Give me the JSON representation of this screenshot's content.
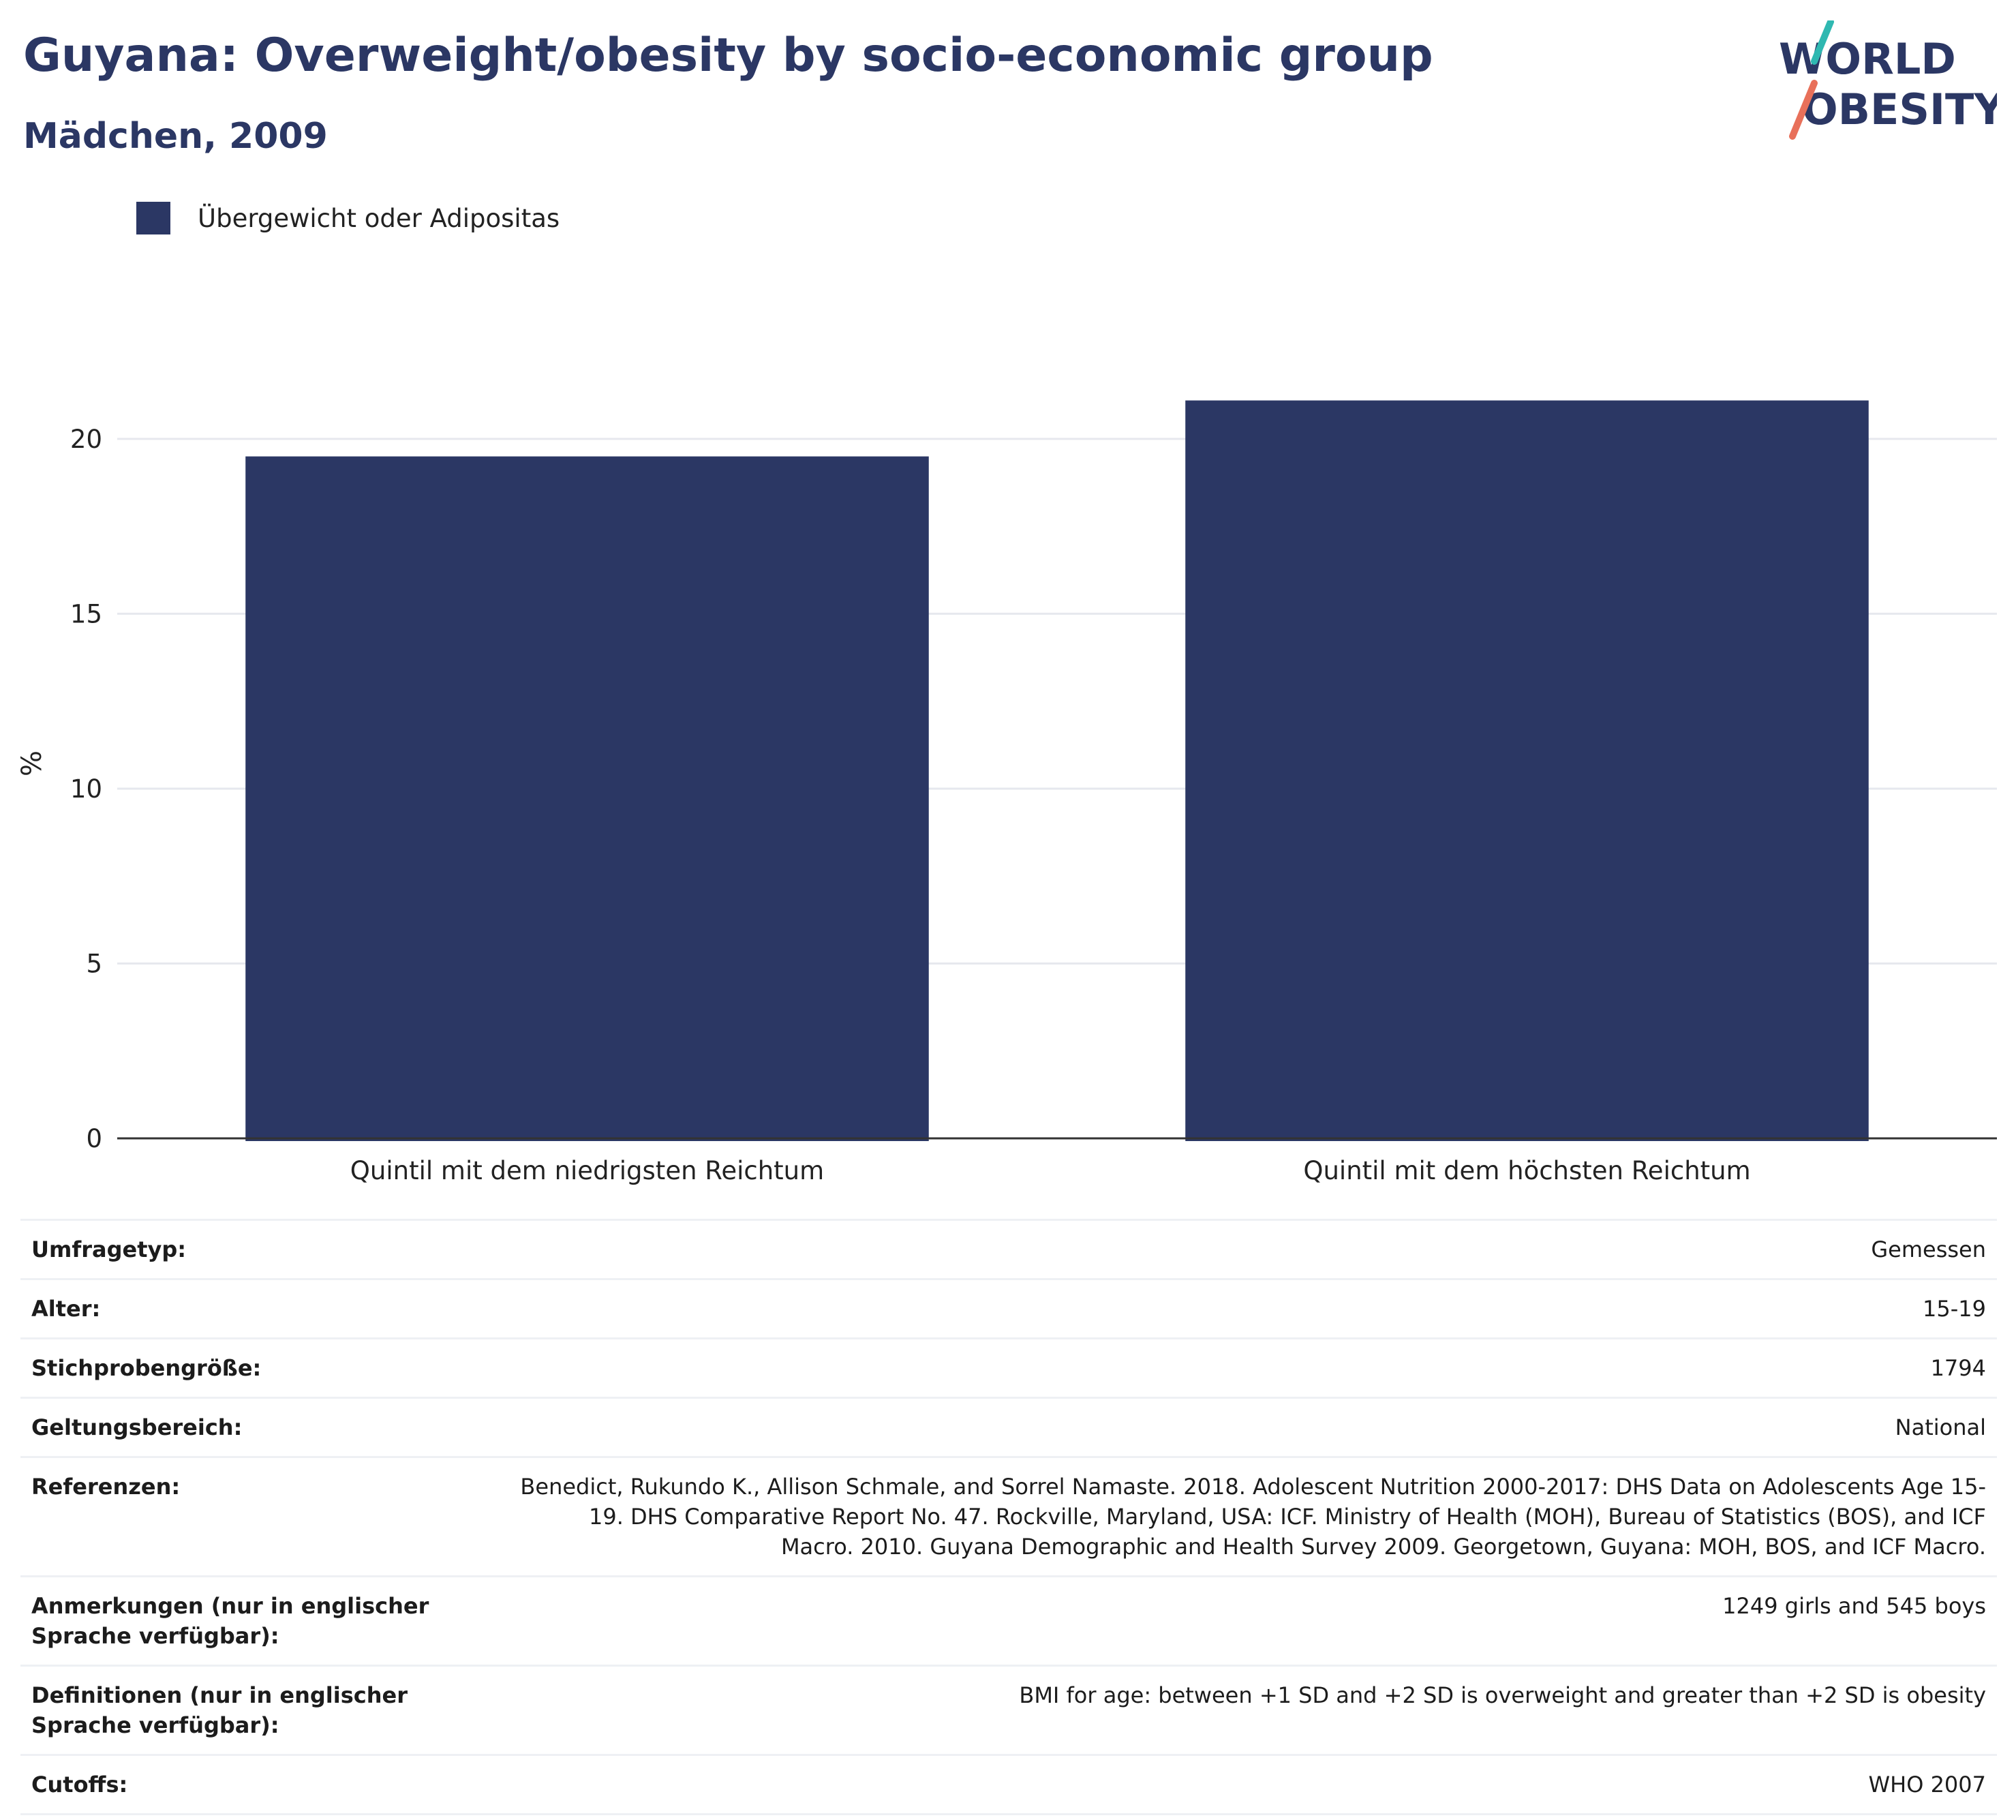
{
  "header": {
    "title": "Guyana: Overweight/obesity by socio-economic group",
    "subtitle": "Mädchen, 2009"
  },
  "logo": {
    "line1": "WORLD",
    "line2": "OBESITY",
    "accent_teal": "#2fb8b1",
    "accent_coral": "#e8705a",
    "brand_color": "#2b3764"
  },
  "colors": {
    "bar": "#2b3764",
    "grid": "#e6e8ee",
    "axis": "#333333",
    "tick_text": "#222222"
  },
  "chart_data": {
    "type": "bar",
    "categories": [
      "Quintil mit dem niedrigsten Reichtum",
      "Quintil mit dem höchsten Reichtum"
    ],
    "series": [
      {
        "name": "Übergewicht oder Adipositas",
        "values": [
          19.5,
          21.1
        ]
      }
    ],
    "ylabel": "%",
    "xlabel": "",
    "ylim": [
      0,
      23
    ],
    "yticks": [
      0,
      5,
      10,
      15,
      20
    ],
    "grid": true,
    "legend_position": "top-left"
  },
  "info": [
    {
      "key": "Umfragetyp:",
      "value": "Gemessen"
    },
    {
      "key": "Alter:",
      "value": "15-19"
    },
    {
      "key": "Stichprobengröße:",
      "value": "1794"
    },
    {
      "key": "Geltungsbereich:",
      "value": "National"
    },
    {
      "key": "Referenzen:",
      "value": "Benedict, Rukundo K., Allison Schmale, and Sorrel Namaste. 2018. Adolescent Nutrition 2000-2017: DHS Data on Adolescents Age 15-19. DHS Comparative Report No. 47. Rockville, Maryland, USA: ICF. Ministry of Health (MOH), Bureau of Statistics (BOS), and ICF Macro. 2010. Guyana Demographic and Health Survey 2009. Georgetown, Guyana: MOH, BOS, and ICF Macro."
    },
    {
      "key": "Anmerkungen (nur in englischer Sprache verfügbar):",
      "value": "1249 girls and 545 boys"
    },
    {
      "key": "Definitionen (nur in englischer Sprache verfügbar):",
      "value": "BMI for age: between +1 SD and +2 SD is overweight and greater than +2 SD is obesity"
    },
    {
      "key": "Cutoffs:",
      "value": "WHO 2007"
    }
  ]
}
